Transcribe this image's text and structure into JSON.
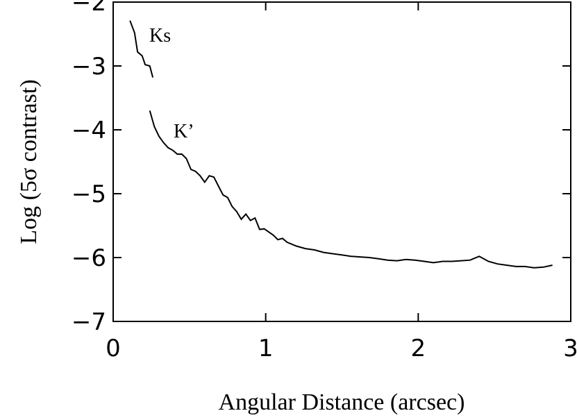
{
  "chart_data": {
    "type": "line",
    "x_label": "Angular Distance (arcsec)",
    "y_label": "Log (5σ contrast)",
    "xlim": [
      0,
      3
    ],
    "xticks": [
      0,
      1,
      2,
      3
    ],
    "ylim": [
      -7,
      -2
    ],
    "yticks": [
      {
        "value": -7,
        "label": "−7"
      },
      {
        "value": -6,
        "label": "−6"
      },
      {
        "value": -5,
        "label": "−5"
      },
      {
        "value": -4,
        "label": "−4"
      },
      {
        "value": -3,
        "label": "−3"
      },
      {
        "value": -2,
        "label": "−2"
      }
    ],
    "series": [
      {
        "name": "Ks",
        "color": "#000000",
        "x": [
          0.11,
          0.14,
          0.16,
          0.19,
          0.21,
          0.24,
          0.26
        ],
        "values": [
          -2.29,
          -2.48,
          -2.78,
          -2.84,
          -2.98,
          -3.0,
          -3.18
        ]
      },
      {
        "name": "K’",
        "color": "#000000",
        "x": [
          0.24,
          0.27,
          0.3,
          0.33,
          0.36,
          0.39,
          0.42,
          0.45,
          0.48,
          0.51,
          0.54,
          0.57,
          0.6,
          0.63,
          0.66,
          0.69,
          0.72,
          0.75,
          0.78,
          0.81,
          0.84,
          0.87,
          0.9,
          0.93,
          0.96,
          0.99,
          1.02,
          1.05,
          1.08,
          1.11,
          1.14,
          1.2,
          1.26,
          1.32,
          1.38,
          1.44,
          1.5,
          1.56,
          1.62,
          1.68,
          1.74,
          1.8,
          1.86,
          1.92,
          1.98,
          2.04,
          2.1,
          2.16,
          2.22,
          2.28,
          2.34,
          2.4,
          2.46,
          2.52,
          2.58,
          2.64,
          2.7,
          2.76,
          2.82,
          2.88
        ],
        "values": [
          -3.7,
          -3.95,
          -4.1,
          -4.2,
          -4.28,
          -4.32,
          -4.38,
          -4.38,
          -4.45,
          -4.62,
          -4.65,
          -4.72,
          -4.82,
          -4.72,
          -4.74,
          -4.88,
          -5.02,
          -5.06,
          -5.2,
          -5.28,
          -5.4,
          -5.32,
          -5.42,
          -5.38,
          -5.56,
          -5.55,
          -5.6,
          -5.65,
          -5.72,
          -5.7,
          -5.76,
          -5.82,
          -5.86,
          -5.88,
          -5.92,
          -5.94,
          -5.96,
          -5.98,
          -5.99,
          -6.0,
          -6.02,
          -6.04,
          -6.05,
          -6.03,
          -6.04,
          -6.06,
          -6.08,
          -6.06,
          -6.06,
          -6.05,
          -6.04,
          -5.98,
          -6.06,
          -6.1,
          -6.12,
          -6.14,
          -6.14,
          -6.16,
          -6.15,
          -6.12
        ]
      }
    ]
  }
}
